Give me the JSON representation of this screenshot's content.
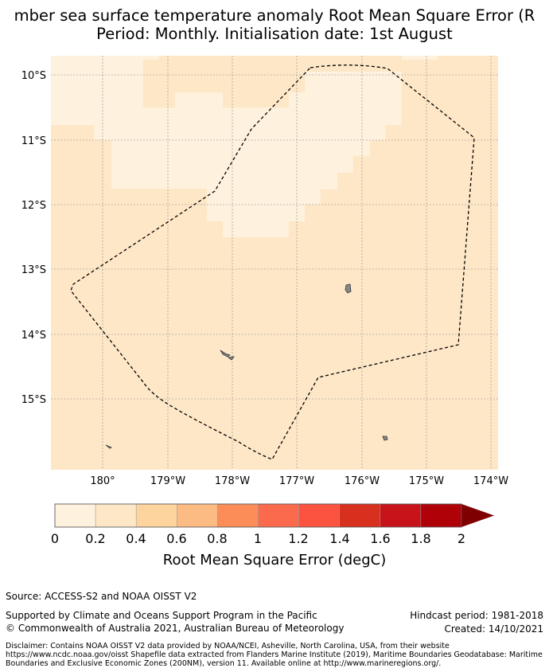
{
  "title": {
    "line1": "mber sea surface temperature anomaly Root Mean Square Error (R",
    "line2": "Period: Monthly. Initialisation date: 1st August"
  },
  "map": {
    "lat_labels": [
      "10°S",
      "11°S",
      "12°S",
      "13°S",
      "14°S",
      "15°S"
    ],
    "lon_labels": [
      "180°",
      "179°W",
      "178°W",
      "177°W",
      "176°W",
      "175°W",
      "174°W"
    ],
    "colors": {
      "low": "#fef1dd",
      "mid": "#fde7c7",
      "coast": "#888888"
    }
  },
  "colorbar": {
    "ticks": [
      "0",
      "0.2",
      "0.4",
      "0.6",
      "0.8",
      "1",
      "1.2",
      "1.4",
      "1.6",
      "1.8",
      "2"
    ],
    "label": "Root Mean Square Error (degC)",
    "colors": [
      "#fef1dd",
      "#fde7c7",
      "#fdd49e",
      "#fdbb84",
      "#fc8d59",
      "#fc6a4d",
      "#fb5340",
      "#d7301f",
      "#c8131b",
      "#b00008",
      "#7f0000"
    ]
  },
  "footer": {
    "source": "Source: ACCESS-S2 and NOAA OISST V2",
    "supported": "Supported by Climate and Oceans Support Program in the Pacific",
    "copyright": "© Commonwealth of Australia 2021, Australian Bureau of Meteorology",
    "hindcast": "Hindcast period: 1981-2018",
    "created": "Created: 14/10/2021",
    "disclaimer": "Disclaimer: Contains NOAA OISST V2 data provided by NOAA/NCEI, Asheville, North Carolina, USA, from their website https://www.ncdc.noaa.gov/oisst Shapefile data extracted from Flanders Marine Institute (2019), Maritime Boundaries Geodatabase: Maritime Boundaries and Exclusive Economic Zones (200NM), version 11. Available online at http://www.marineregions.org/."
  }
}
